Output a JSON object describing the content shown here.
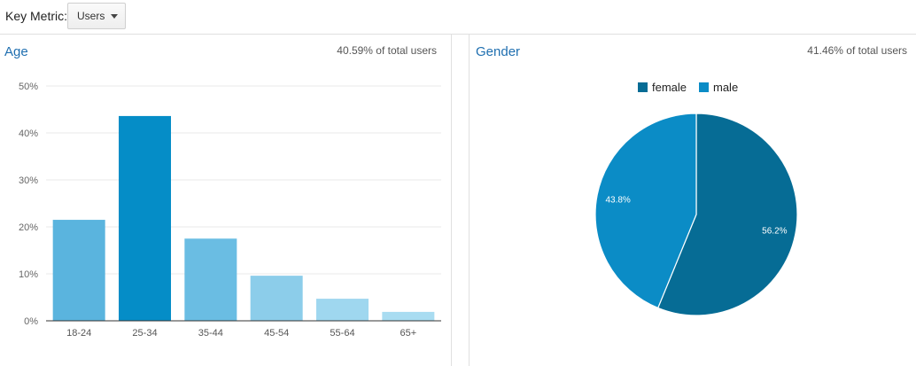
{
  "key_metric": {
    "label": "Key Metric:",
    "selected": "Users"
  },
  "colors": {
    "title": "#1f6fb0",
    "age_bars": [
      "#5ab4de",
      "#058dc7",
      "#6abde3",
      "#8ccdea",
      "#9fd7ef",
      "#a9dcf1"
    ],
    "female": "#066c95",
    "male": "#0b8cc6"
  },
  "age": {
    "title": "Age",
    "subtitle": "40.59% of total users"
  },
  "gender": {
    "title": "Gender",
    "subtitle": "41.46% of total users"
  },
  "chart_data": [
    {
      "type": "bar",
      "title": "Age",
      "categories": [
        "18-24",
        "25-34",
        "35-44",
        "45-54",
        "55-64",
        "65+"
      ],
      "values": [
        21.5,
        43.6,
        17.5,
        9.6,
        4.7,
        1.9
      ],
      "ylim": [
        0,
        50
      ],
      "yticks": [
        0,
        10,
        20,
        30,
        40,
        50
      ],
      "ytick_labels": [
        "0%",
        "10%",
        "20%",
        "30%",
        "40%",
        "50%"
      ],
      "grid": true
    },
    {
      "type": "pie",
      "title": "Gender",
      "labels": [
        "female",
        "male"
      ],
      "values": [
        56.2,
        43.8
      ],
      "value_labels": [
        "56.2%",
        "43.8%"
      ],
      "legend": "top"
    }
  ]
}
